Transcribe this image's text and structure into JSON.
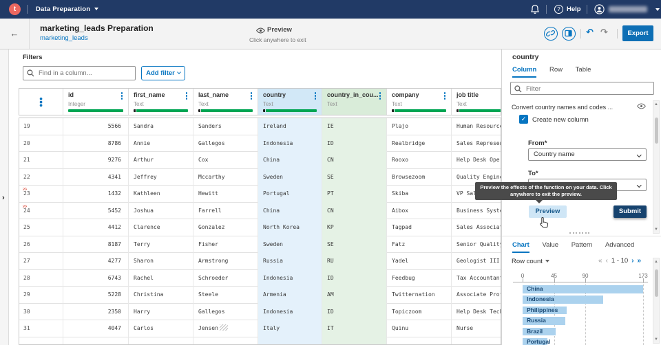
{
  "colors": {
    "navbar": "#213a66",
    "accent": "#0675c1",
    "green": "#00a553",
    "bar": "#abd2ee",
    "submit": "#17436e",
    "export": "#0e6fb5",
    "logo": "#ec6860"
  },
  "icons": {
    "back": "←",
    "undo": "↶",
    "redo": "↷",
    "rail_chevron": "›",
    "check": "✓",
    "help_qmark": "?",
    "scroll_up": "▲",
    "scroll_down": "▼"
  },
  "navbar": {
    "logo_letter": "t",
    "app_name": "Data Preparation",
    "help_label": "Help"
  },
  "titlebar": {
    "title": "marketing_leads Preparation",
    "dataset_link": "marketing_leads",
    "preview_label": "Preview",
    "preview_sub": "Click anywhere to exit",
    "export_label": "Export"
  },
  "filters": {
    "label": "Filters",
    "search_placeholder": "Find in a column...",
    "add_filter_label": "Add filter"
  },
  "table": {
    "columns": [
      {
        "kebab_only": true
      },
      {
        "name": "id",
        "type": "Integer",
        "bar": "full"
      },
      {
        "name": "first_name",
        "type": "Text",
        "bar": "black"
      },
      {
        "name": "last_name",
        "type": "Text",
        "bar": "black"
      },
      {
        "name": "country",
        "type": "Text",
        "bar": "black",
        "highlight": "selected"
      },
      {
        "name": "country_in_cou...",
        "type": "Text",
        "bar": "none",
        "highlight": "preview"
      },
      {
        "name": "company",
        "type": "Text",
        "bar": "black"
      },
      {
        "name": "job title",
        "type": "Text",
        "bar": "black"
      }
    ],
    "rows": [
      [
        "19",
        "5566",
        "Sandra",
        "Sanders",
        "Ireland",
        "IE",
        "Plajo",
        "Human Resource"
      ],
      [
        "20",
        "8786",
        "Annie",
        "Gallegos",
        "Indonesia",
        "ID",
        "Realbridge",
        "Sales Represen"
      ],
      [
        "21",
        "9276",
        "Arthur",
        "Cox",
        "China",
        "CN",
        "Rooxo",
        "Help Desk Oper"
      ],
      [
        "22",
        "4341",
        "Jeffrey",
        "Mccarthy",
        "Sweden",
        "SE",
        "Browsezoom",
        "Quality Engine"
      ],
      [
        "23",
        "1432",
        "Kathleen",
        "Hewitt",
        "Portugal",
        "PT",
        "Skiba",
        "VP Sales"
      ],
      [
        "24",
        "5452",
        "Joshua",
        "Farrell",
        "China",
        "CN",
        "Aibox",
        "Business Syste"
      ],
      [
        "25",
        "4412",
        "Clarence",
        "Gonzalez",
        "North Korea",
        "KP",
        "Tagpad",
        "Sales Associat"
      ],
      [
        "26",
        "8187",
        "Terry",
        "Fisher",
        "Sweden",
        "SE",
        "Fatz",
        "Senior Quality"
      ],
      [
        "27",
        "4277",
        "Sharon",
        "Armstrong",
        "Russia",
        "RU",
        "Yadel",
        "Geologist III"
      ],
      [
        "28",
        "6743",
        "Rachel",
        "Schroeder",
        "Indonesia",
        "ID",
        "Feedbug",
        "Tax Accountant"
      ],
      [
        "29",
        "5228",
        "Christina",
        "Steele",
        "Armenia",
        "AM",
        "Twitternation",
        "Associate Prof"
      ],
      [
        "30",
        "2350",
        "Harry",
        "Gallegos",
        "Indonesia",
        "ID",
        "Topiczoom",
        "Help Desk Tech"
      ],
      [
        "31",
        "4047",
        "Carlos",
        "Jensen",
        "Italy",
        "IT",
        "Quinu",
        "Nurse"
      ]
    ],
    "marked_rows": [
      "23",
      "24"
    ],
    "trailing_ws": {
      "row": "31",
      "column_index": 3
    }
  },
  "panel": {
    "title": "country",
    "tabs": [
      "Column",
      "Row",
      "Table"
    ],
    "filter_placeholder": "Filter",
    "function_label": "Convert country names and codes ...",
    "create_new_column_label": "Create new column",
    "from_label": "From*",
    "from_value": "Country name",
    "to_label": "To*",
    "preview_label": "Preview",
    "submit_label": "Submit"
  },
  "tooltip": {
    "text": "Preview the effects of the function on your data. Click anywhere to exit the preview."
  },
  "stats": {
    "tabs": [
      "Chart",
      "Value",
      "Pattern",
      "Advanced"
    ],
    "row_count_label": "Row count",
    "pager": {
      "first": "«",
      "prev": "‹",
      "range": "1 - 10",
      "next": "›",
      "last": "»"
    }
  },
  "chart_data": {
    "type": "bar",
    "orientation": "horizontal",
    "title": "Row count",
    "categories": [
      "China",
      "Indonesia",
      "Philippines",
      "Russia",
      "Brazil",
      "Portugal"
    ],
    "values": [
      173,
      116,
      63,
      61,
      47,
      36
    ],
    "xlim": [
      0,
      173
    ],
    "xticks": [
      0,
      45,
      90,
      173
    ],
    "grid": "dotted-vertical",
    "legend": "none",
    "visible_page": "1 - 10"
  }
}
